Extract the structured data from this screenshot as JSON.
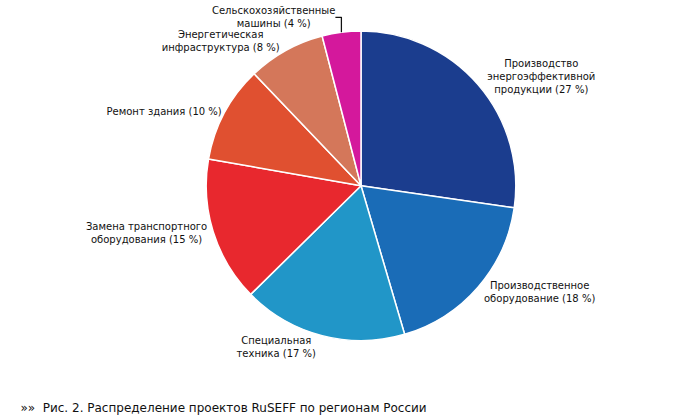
{
  "chart_data": {
    "type": "pie",
    "title": "»»  Рис. 2. Распределение проектов RuSEFF по регионам России",
    "categories": [
      "Производство\nэнергоэффективной\nпродукции (27 %)",
      "Производственное\nоборудование (18 %)",
      "Специальная\nтехника (17 %)",
      "Замена транспортного\nоборудования (15 %)",
      "Ремонт здания (10 %)",
      "Энергетическая\nинфраструктура (8 %)",
      "Сельскохозяйственные\nмашины (4 %)"
    ],
    "values": [
      27,
      18,
      17,
      15,
      10,
      8,
      4
    ],
    "colors": [
      "#1b3d8e",
      "#1a6cb7",
      "#2196c8",
      "#e8282e",
      "#e05030",
      "#d4775a",
      "#d4189c"
    ]
  }
}
